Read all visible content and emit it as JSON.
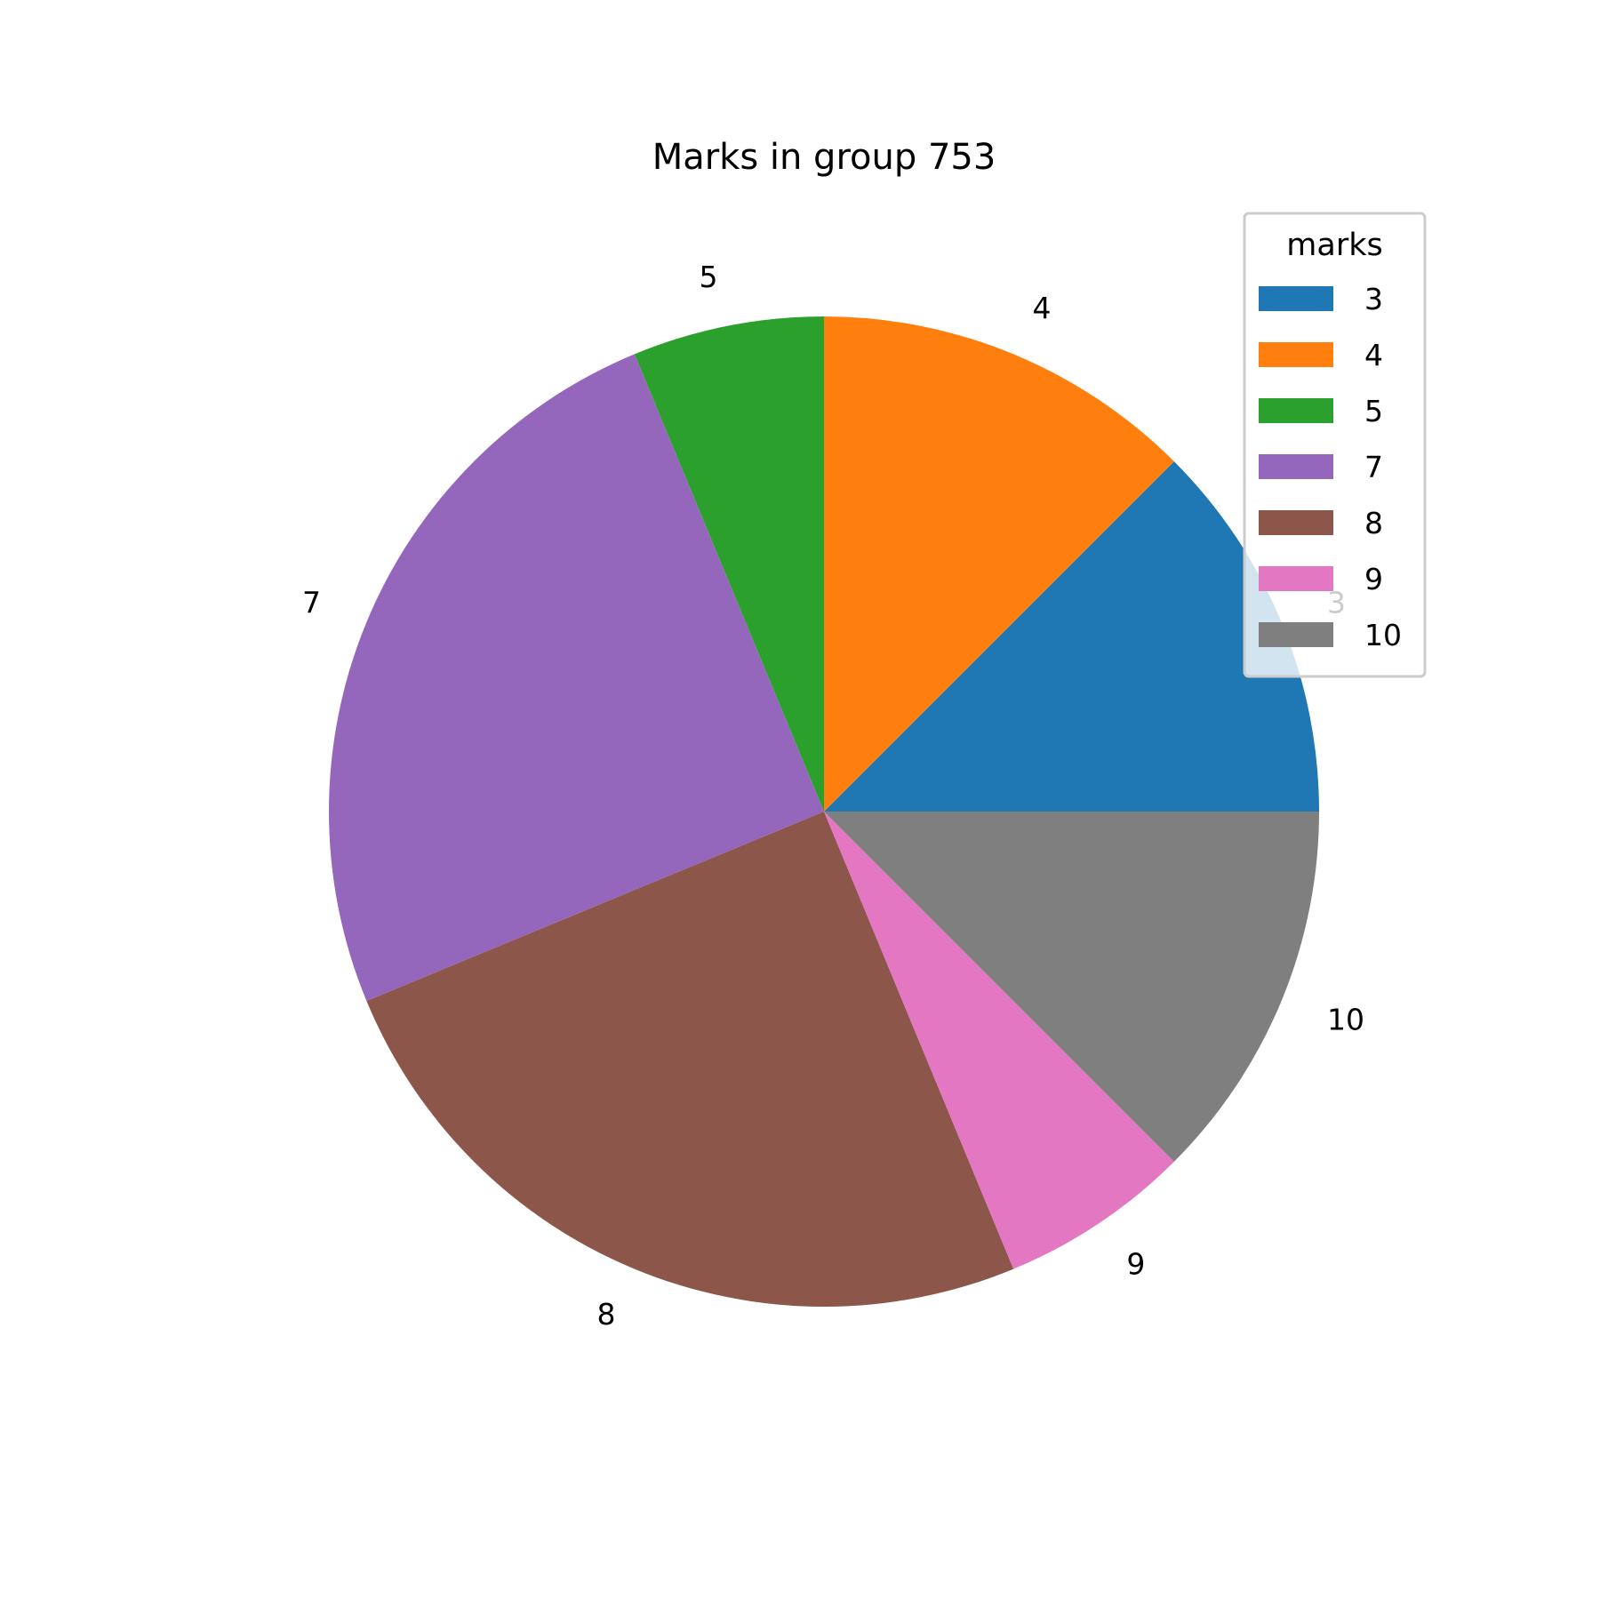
{
  "chart_data": {
    "type": "pie",
    "title": "Marks in group 753",
    "legend": {
      "title": "marks",
      "placement": "top-right"
    },
    "start_angle_deg": 0,
    "direction": "counterclockwise",
    "slices": [
      {
        "label": "3",
        "value": 2,
        "color": "#1f77b4"
      },
      {
        "label": "4",
        "value": 2,
        "color": "#ff7f0e"
      },
      {
        "label": "5",
        "value": 1,
        "color": "#2ca02c"
      },
      {
        "label": "7",
        "value": 4,
        "color": "#9467bd"
      },
      {
        "label": "8",
        "value": 4,
        "color": "#8c564b"
      },
      {
        "label": "9",
        "value": 1,
        "color": "#e377c2"
      },
      {
        "label": "10",
        "value": 2,
        "color": "#7f7f7f"
      }
    ]
  }
}
